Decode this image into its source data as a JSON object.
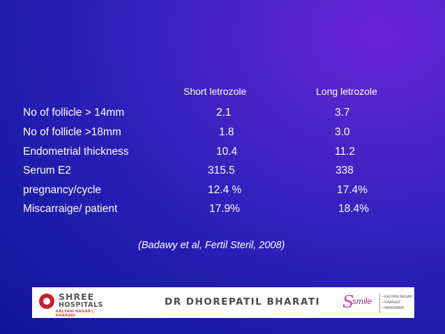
{
  "table": {
    "columns": [
      "Short letrozole",
      "Long letrozole"
    ],
    "rows": [
      {
        "label": " No of follicle > 14mm",
        "short": "2.1",
        "long": "3.7"
      },
      {
        "label": "No of follicle >18mm",
        "short": "1.8",
        "long": "3.0"
      },
      {
        "label": "Endometrial thickness",
        "short": "10.4",
        "long": "11.2"
      },
      {
        "label": "Serum E2",
        "short": "315.5",
        "long": "338"
      },
      {
        "label": "pregnancy/cycle",
        "short": "12.4 %",
        "long": "17.4%"
      },
      {
        "label": "Miscarraige/ patient",
        "short": "17.9%",
        "long": "18.4%"
      }
    ]
  },
  "citation": "(Badawy et al, Fertil Steril, 2008)",
  "footer": {
    "hospital_name": "SHREE",
    "hospital_sub": "HOSPITALS",
    "hospital_locations": "KALYANI NAGAR | KHARADI",
    "doctor": "DR DHOREPATIL BHARATI",
    "smile_brand": "smile",
    "smile_locations": [
      "• KALYANI NAGAR",
      "• KHARADI",
      "• WANOWARI"
    ]
  },
  "colors": {
    "background_dark": "#14149a",
    "background_accent": "#6a22d6",
    "text": "#ffffff",
    "brand_red": "#c8202d",
    "brand_magenta": "#c84ca0"
  }
}
